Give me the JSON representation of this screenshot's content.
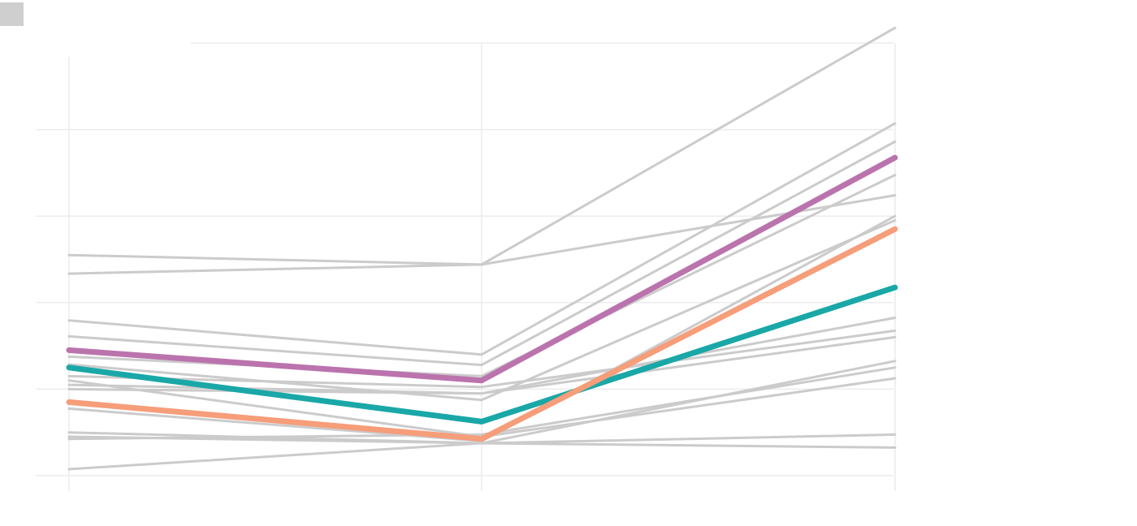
{
  "legend": {
    "swatch_color": "#d0cfd0"
  },
  "colors": {
    "grid": "#ececec",
    "background_line": "#cccbcc",
    "highlight_purple": "#bb73ad",
    "highlight_teal": "#1aa7a7",
    "highlight_orange": "#f69d79"
  },
  "chart_data": {
    "type": "line",
    "title": "",
    "xlabel": "",
    "ylabel": "",
    "x_ticks": 3,
    "ylim": [
      0,
      100
    ],
    "y_gridlines": [
      20,
      40,
      60,
      80,
      100
    ],
    "grid": true,
    "legend": "none",
    "series": [
      {
        "values": [
          51.0,
          48.8,
          103.5
        ],
        "color": "#cccbcc",
        "highlight": false
      },
      {
        "values": [
          46.7,
          48.8,
          64.8
        ],
        "color": "#cccbcc",
        "highlight": false
      },
      {
        "values": [
          35.9,
          28.0,
          81.4
        ],
        "color": "#cccbcc",
        "highlight": false
      },
      {
        "values": [
          32.2,
          25.6,
          77.2
        ],
        "color": "#cccbcc",
        "highlight": false
      },
      {
        "values": [
          27.5,
          23.0,
          69.5
        ],
        "color": "#cccbcc",
        "highlight": false
      },
      {
        "values": [
          25.7,
          17.5,
          59.0
        ],
        "color": "#cccbcc",
        "highlight": false
      },
      {
        "values": [
          23.0,
          20.5,
          33.5
        ],
        "color": "#cccbcc",
        "highlight": false
      },
      {
        "values": [
          20.0,
          19.0,
          36.5
        ],
        "color": "#cccbcc",
        "highlight": false
      },
      {
        "values": [
          22.0,
          9.0,
          22.5
        ],
        "color": "#cccbcc",
        "highlight": false
      },
      {
        "values": [
          21.0,
          19.0,
          32.0
        ],
        "color": "#cccbcc",
        "highlight": false
      },
      {
        "values": [
          15.5,
          8.0,
          60.0
        ],
        "color": "#cccbcc",
        "highlight": false
      },
      {
        "values": [
          10.0,
          7.5,
          26.5
        ],
        "color": "#cccbcc",
        "highlight": false
      },
      {
        "values": [
          8.5,
          9.5,
          25.0
        ],
        "color": "#cccbcc",
        "highlight": false
      },
      {
        "values": [
          9.0,
          7.5,
          9.5
        ],
        "color": "#cccbcc",
        "highlight": false
      },
      {
        "values": [
          1.5,
          7.5,
          6.5
        ],
        "color": "#cccbcc",
        "highlight": false
      },
      {
        "values": [
          29.0,
          22.0,
          73.5
        ],
        "color": "#bb73ad",
        "highlight": true
      },
      {
        "values": [
          25.0,
          12.5,
          43.5
        ],
        "color": "#1aa7a7",
        "highlight": true
      },
      {
        "values": [
          17.0,
          8.5,
          57.0
        ],
        "color": "#f69d79",
        "highlight": true
      }
    ]
  }
}
